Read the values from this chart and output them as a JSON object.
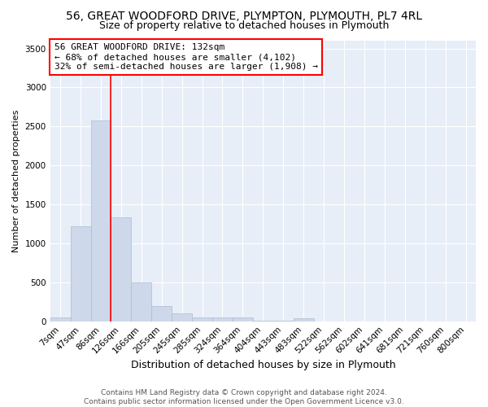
{
  "title1": "56, GREAT WOODFORD DRIVE, PLYMPTON, PLYMOUTH, PL7 4RL",
  "title2": "Size of property relative to detached houses in Plymouth",
  "xlabel": "Distribution of detached houses by size in Plymouth",
  "ylabel": "Number of detached properties",
  "bar_labels": [
    "7sqm",
    "47sqm",
    "86sqm",
    "126sqm",
    "166sqm",
    "205sqm",
    "245sqm",
    "285sqm",
    "324sqm",
    "364sqm",
    "404sqm",
    "443sqm",
    "483sqm",
    "522sqm",
    "562sqm",
    "602sqm",
    "641sqm",
    "681sqm",
    "721sqm",
    "760sqm",
    "800sqm"
  ],
  "bar_values": [
    50,
    1220,
    2580,
    1330,
    500,
    200,
    100,
    50,
    50,
    50,
    5,
    5,
    40,
    0,
    0,
    0,
    0,
    0,
    0,
    0,
    0
  ],
  "bar_color": "#cdd9ea",
  "bar_edge_color": "#aabbd0",
  "red_line_x": 2.5,
  "annotation_line1": "56 GREAT WOODFORD DRIVE: 132sqm",
  "annotation_line2": "← 68% of detached houses are smaller (4,102)",
  "annotation_line3": "32% of semi-detached houses are larger (1,908) →",
  "ylim": [
    0,
    3600
  ],
  "yticks": [
    0,
    500,
    1000,
    1500,
    2000,
    2500,
    3000,
    3500
  ],
  "footer1": "Contains HM Land Registry data © Crown copyright and database right 2024.",
  "footer2": "Contains public sector information licensed under the Open Government Licence v3.0.",
  "bg_color": "#e8eef8",
  "grid_color": "#ffffff",
  "title1_fontsize": 10,
  "title2_fontsize": 9,
  "xlabel_fontsize": 9,
  "ylabel_fontsize": 8,
  "tick_fontsize": 7.5,
  "annotation_fontsize": 8,
  "footer_fontsize": 6.5
}
